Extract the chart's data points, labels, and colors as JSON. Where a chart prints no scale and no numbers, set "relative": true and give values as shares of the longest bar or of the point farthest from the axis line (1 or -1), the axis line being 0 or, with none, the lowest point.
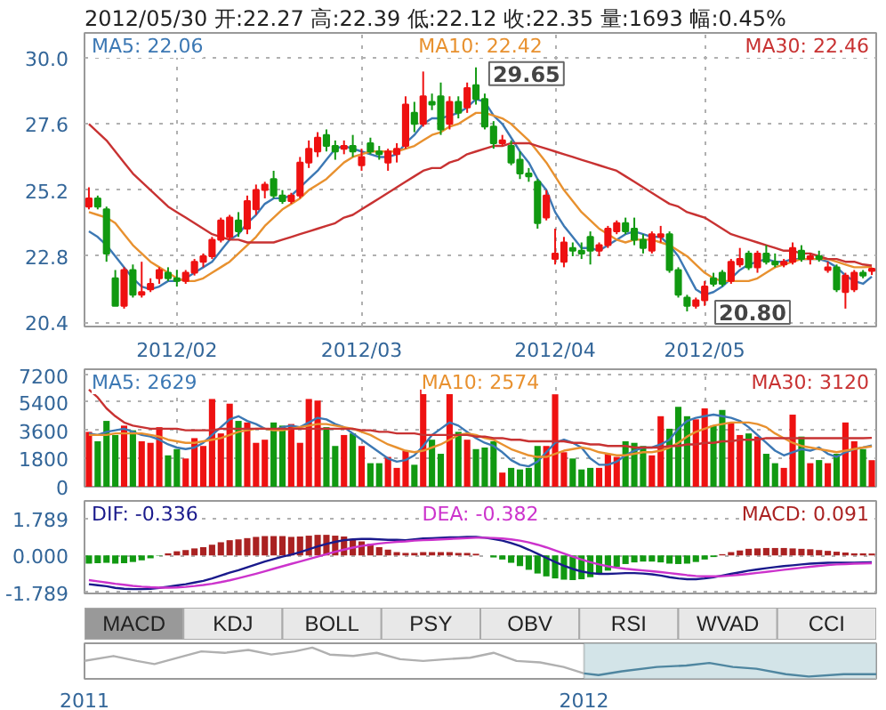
{
  "chart_data": [
    {
      "type": "candlestick",
      "title": "2012/05/30 开:22.27 高:22.39 低:22.12 收:22.35 量:1693 幅:0.45%",
      "categories": [
        null,
        null,
        null,
        null,
        null,
        null,
        null,
        null,
        null,
        null,
        "2012/02",
        null,
        null,
        null,
        null,
        null,
        null,
        null,
        null,
        null,
        null,
        null,
        null,
        null,
        null,
        null,
        null,
        null,
        null,
        null,
        null,
        "2012/03",
        null,
        null,
        null,
        null,
        null,
        null,
        null,
        null,
        null,
        null,
        null,
        null,
        null,
        null,
        null,
        null,
        null,
        null,
        null,
        null,
        null,
        "2012/04",
        null,
        null,
        null,
        null,
        null,
        null,
        null,
        null,
        null,
        null,
        null,
        null,
        null,
        null,
        null,
        null,
        "2012/05",
        null,
        null,
        null,
        null,
        null,
        null,
        null,
        null,
        null,
        null,
        null,
        null,
        null,
        null,
        null,
        null,
        null,
        null,
        null
      ],
      "ylim": [
        20.25,
        30.9
      ],
      "yticks": [
        20.4,
        22.8,
        25.2,
        27.6,
        {
          "value": 30,
          "label": "30.0"
        }
      ],
      "grid": true,
      "legend": "top",
      "colors": [
        "#ee1111",
        "#119911",
        "#119911",
        "#119911",
        "#ee1111",
        "#119911",
        "#ee1111",
        "#ee1111",
        "#ee1111",
        "#119911",
        "#119911",
        "#ee1111",
        "#ee1111",
        "#ee1111",
        "#ee1111",
        "#ee1111",
        "#ee1111",
        "#119911",
        "#ee1111",
        "#ee1111",
        "#ee1111",
        "#119911",
        "#119911",
        "#ee1111",
        "#ee1111",
        "#ee1111",
        "#ee1111",
        "#119911",
        "#119911",
        "#ee1111",
        "#119911",
        "#ee1111",
        "#119911",
        "#119911",
        "#ee1111",
        "#ee1111",
        "#ee1111",
        "#119911",
        "#ee1111",
        "#119911",
        "#119911",
        "#ee1111",
        "#119911",
        "#ee1111",
        "#119911",
        "#119911",
        "#119911",
        "#ee1111",
        "#119911",
        "#119911",
        "#119911",
        "#119911",
        "#ee1111",
        "#ee1111",
        "#ee1111",
        "#119911",
        "#119911",
        "#119911",
        "#ee1111",
        "#ee1111",
        "#ee1111",
        "#119911",
        "#119911",
        "#119911",
        "#ee1111",
        "#ee1111",
        "#119911",
        "#119911",
        "#119911",
        "#ee1111",
        "#ee1111",
        "#119911",
        "#119911",
        "#ee1111",
        "#ee1111",
        "#119911",
        "#ee1111",
        "#119911",
        "#119911",
        "#ee1111",
        "#ee1111",
        "#119911",
        "#ee1111",
        "#119911",
        "#ee1111",
        "#119911",
        "#ee1111",
        "#ee1111",
        "#119911",
        "#ee1111"
      ],
      "ohlc": [
        [
          24.6,
          25.3,
          24.5,
          24.9
        ],
        [
          24.9,
          25.0,
          24.5,
          24.6
        ],
        [
          24.5,
          24.6,
          22.6,
          22.9
        ],
        [
          22.0,
          22.3,
          21.0,
          21.0
        ],
        [
          21.0,
          22.4,
          20.9,
          22.3
        ],
        [
          22.3,
          22.5,
          21.3,
          21.4
        ],
        [
          21.4,
          22.6,
          21.3,
          21.5
        ],
        [
          21.6,
          22.0,
          21.5,
          21.8
        ],
        [
          22.0,
          22.4,
          21.8,
          22.3
        ],
        [
          22.2,
          22.4,
          21.9,
          22.0
        ],
        [
          22.0,
          22.3,
          21.7,
          21.9
        ],
        [
          21.9,
          22.3,
          21.8,
          22.2
        ],
        [
          22.2,
          22.7,
          22.1,
          22.6
        ],
        [
          22.6,
          22.9,
          22.4,
          22.8
        ],
        [
          22.8,
          23.5,
          22.7,
          23.4
        ],
        [
          23.4,
          24.2,
          23.3,
          24.1
        ],
        [
          23.5,
          24.3,
          23.4,
          24.2
        ],
        [
          24.1,
          24.4,
          23.5,
          23.7
        ],
        [
          23.8,
          25.0,
          23.6,
          24.8
        ],
        [
          24.5,
          25.4,
          24.3,
          25.2
        ],
        [
          25.2,
          25.5,
          24.9,
          25.4
        ],
        [
          25.6,
          25.9,
          24.9,
          25.0
        ],
        [
          25.0,
          25.2,
          24.7,
          24.8
        ],
        [
          24.8,
          25.1,
          24.7,
          25.0
        ],
        [
          25.0,
          26.4,
          24.9,
          26.2
        ],
        [
          26.2,
          27.0,
          26.0,
          26.7
        ],
        [
          26.6,
          27.3,
          26.4,
          27.1
        ],
        [
          27.2,
          27.4,
          26.6,
          26.8
        ],
        [
          26.8,
          27.0,
          26.3,
          26.6
        ],
        [
          26.7,
          27.0,
          26.5,
          26.8
        ],
        [
          26.8,
          27.2,
          26.4,
          26.6
        ],
        [
          26.1,
          26.7,
          25.9,
          26.4
        ],
        [
          26.9,
          27.1,
          26.5,
          26.6
        ],
        [
          26.6,
          26.8,
          26.3,
          26.5
        ],
        [
          26.2,
          26.7,
          25.9,
          26.6
        ],
        [
          26.5,
          26.9,
          26.2,
          26.7
        ],
        [
          26.8,
          28.6,
          26.7,
          28.3
        ],
        [
          28.0,
          28.4,
          27.3,
          27.6
        ],
        [
          27.6,
          29.5,
          27.5,
          28.6
        ],
        [
          28.4,
          28.7,
          28.1,
          28.3
        ],
        [
          28.6,
          29.1,
          27.2,
          27.4
        ],
        [
          27.6,
          28.6,
          27.4,
          28.4
        ],
        [
          28.4,
          28.6,
          27.8,
          28.0
        ],
        [
          28.2,
          29.1,
          28.0,
          28.9
        ],
        [
          29.0,
          29.65,
          28.3,
          28.5
        ],
        [
          28.5,
          28.7,
          27.4,
          27.5
        ],
        [
          27.5,
          27.7,
          26.7,
          26.9
        ],
        [
          26.9,
          27.2,
          26.8,
          27.0
        ],
        [
          26.8,
          27.0,
          26.1,
          26.2
        ],
        [
          26.3,
          26.6,
          25.6,
          25.8
        ],
        [
          25.8,
          26.0,
          25.5,
          25.7
        ],
        [
          25.5,
          25.6,
          23.8,
          24.0
        ],
        [
          24.2,
          25.2,
          24.1,
          25.0
        ],
        [
          22.7,
          23.8,
          22.5,
          22.9
        ],
        [
          22.6,
          23.5,
          22.4,
          23.3
        ],
        [
          23.1,
          23.3,
          22.8,
          23.0
        ],
        [
          23.0,
          23.3,
          22.7,
          22.9
        ],
        [
          23.5,
          23.7,
          22.5,
          23.0
        ],
        [
          23.0,
          23.3,
          22.8,
          23.2
        ],
        [
          23.2,
          23.9,
          23.1,
          23.8
        ],
        [
          23.7,
          24.1,
          23.6,
          24.0
        ],
        [
          24.0,
          24.2,
          23.6,
          23.7
        ],
        [
          23.8,
          24.2,
          23.2,
          23.4
        ],
        [
          23.4,
          23.6,
          22.9,
          23.1
        ],
        [
          23.0,
          23.7,
          22.9,
          23.6
        ],
        [
          23.5,
          23.9,
          23.3,
          23.6
        ],
        [
          23.6,
          23.7,
          22.2,
          22.3
        ],
        [
          22.3,
          22.4,
          21.3,
          21.4
        ],
        [
          21.3,
          21.4,
          20.8,
          21.0
        ],
        [
          21.0,
          21.3,
          20.9,
          21.2
        ],
        [
          21.2,
          21.9,
          21.0,
          21.7
        ],
        [
          22.0,
          22.2,
          21.7,
          21.8
        ],
        [
          22.2,
          22.3,
          21.7,
          21.8
        ],
        [
          21.9,
          22.7,
          21.8,
          22.6
        ],
        [
          22.5,
          23.1,
          22.4,
          22.7
        ],
        [
          22.9,
          23.0,
          22.3,
          22.4
        ],
        [
          22.4,
          23.0,
          22.2,
          22.9
        ],
        [
          22.9,
          23.2,
          22.5,
          22.6
        ],
        [
          22.6,
          22.9,
          22.4,
          22.5
        ],
        [
          22.5,
          22.7,
          22.4,
          22.6
        ],
        [
          22.6,
          23.3,
          22.5,
          23.1
        ],
        [
          23.0,
          23.2,
          22.6,
          22.7
        ],
        [
          22.7,
          22.9,
          22.5,
          22.8
        ],
        [
          22.8,
          23.0,
          22.6,
          22.7
        ],
        [
          22.3,
          22.6,
          22.2,
          22.4
        ],
        [
          22.4,
          22.5,
          21.5,
          21.6
        ],
        [
          21.5,
          22.2,
          20.9,
          22.1
        ],
        [
          21.6,
          22.3,
          21.5,
          22.2
        ],
        [
          22.2,
          22.3,
          22.0,
          22.1
        ],
        [
          22.27,
          22.39,
          22.12,
          22.35
        ]
      ],
      "series": [
        {
          "type": "line",
          "name": "MA5: 22.06",
          "color": "#3c78b4",
          "values": [
            23.7,
            23.5,
            23.2,
            22.8,
            22.4,
            22.0,
            21.7,
            21.6,
            21.7,
            21.9,
            21.9,
            22.0,
            22.2,
            22.4,
            22.6,
            23.0,
            23.4,
            23.6,
            24.0,
            24.3,
            24.7,
            24.9,
            24.9,
            25.0,
            25.3,
            25.6,
            25.9,
            26.3,
            26.7,
            26.8,
            26.7,
            26.6,
            26.5,
            26.4,
            26.4,
            26.5,
            26.9,
            27.2,
            27.6,
            27.8,
            27.8,
            27.9,
            28.0,
            28.2,
            28.5,
            28.4,
            27.9,
            27.6,
            27.1,
            26.6,
            26.2,
            25.6,
            25.2,
            24.4,
            23.9,
            23.5,
            23.1,
            23.1,
            23.0,
            23.2,
            23.4,
            23.6,
            23.7,
            23.6,
            23.5,
            23.5,
            23.2,
            22.8,
            22.2,
            21.6,
            21.4,
            21.5,
            21.7,
            22.0,
            22.3,
            22.5,
            22.6,
            22.7,
            22.6,
            22.6,
            22.7,
            22.7,
            22.7,
            22.7,
            22.6,
            22.4,
            22.1,
            21.9,
            21.8,
            22.06
          ]
        },
        {
          "type": "line",
          "name": "MA10: 22.42",
          "color": "#e8912f",
          "values": [
            24.4,
            24.3,
            24.2,
            24.0,
            23.6,
            23.2,
            22.9,
            22.6,
            22.4,
            22.2,
            22.0,
            21.9,
            21.9,
            22.0,
            22.2,
            22.4,
            22.6,
            22.9,
            23.2,
            23.5,
            23.9,
            24.2,
            24.5,
            24.7,
            24.9,
            25.2,
            25.4,
            25.6,
            25.9,
            26.2,
            26.4,
            26.5,
            26.6,
            26.6,
            26.6,
            26.6,
            26.7,
            26.8,
            27.0,
            27.2,
            27.3,
            27.5,
            27.6,
            27.8,
            28.0,
            28.0,
            27.9,
            27.8,
            27.6,
            27.3,
            27.0,
            26.6,
            26.2,
            25.7,
            25.2,
            24.8,
            24.4,
            24.1,
            23.8,
            23.6,
            23.4,
            23.3,
            23.4,
            23.4,
            23.4,
            23.3,
            23.2,
            23.0,
            22.8,
            22.5,
            22.2,
            22.0,
            21.9,
            21.9,
            21.9,
            21.9,
            22.0,
            22.2,
            22.4,
            22.5,
            22.6,
            22.7,
            22.7,
            22.7,
            22.7,
            22.6,
            22.5,
            22.4,
            22.4,
            22.42
          ]
        },
        {
          "type": "line",
          "name": "MA30: 22.46",
          "color": "#c83232",
          "values": [
            27.6,
            27.3,
            27.0,
            26.6,
            26.2,
            25.8,
            25.5,
            25.2,
            24.9,
            24.6,
            24.4,
            24.2,
            24.0,
            23.8,
            23.6,
            23.5,
            23.4,
            23.4,
            23.3,
            23.3,
            23.3,
            23.3,
            23.4,
            23.5,
            23.6,
            23.7,
            23.8,
            23.9,
            24.0,
            24.2,
            24.3,
            24.5,
            24.7,
            24.9,
            25.1,
            25.3,
            25.5,
            25.7,
            25.9,
            26.0,
            26.0,
            26.2,
            26.3,
            26.5,
            26.6,
            26.7,
            26.8,
            26.8,
            26.9,
            26.9,
            26.9,
            26.8,
            26.7,
            26.6,
            26.5,
            26.4,
            26.3,
            26.2,
            26.1,
            26.0,
            25.9,
            25.7,
            25.5,
            25.3,
            25.1,
            24.9,
            24.7,
            24.6,
            24.4,
            24.3,
            24.2,
            24.0,
            23.8,
            23.6,
            23.5,
            23.4,
            23.3,
            23.2,
            23.1,
            23.0,
            23.0,
            22.9,
            22.9,
            22.8,
            22.7,
            22.7,
            22.6,
            22.6,
            22.5,
            22.46
          ]
        }
      ],
      "annotations": [
        "29.65",
        "20.80"
      ]
    },
    {
      "type": "bar",
      "tick_labels": "y",
      "categories": [
        null,
        null,
        null,
        null,
        null,
        null,
        null,
        null,
        null,
        null,
        "2012/02",
        null,
        null,
        null,
        null,
        null,
        null,
        null,
        null,
        null,
        null,
        null,
        null,
        null,
        null,
        null,
        null,
        null,
        null,
        null,
        null,
        "2012/03",
        null,
        null,
        null,
        null,
        null,
        null,
        null,
        null,
        null,
        null,
        null,
        null,
        null,
        null,
        null,
        null,
        null,
        null,
        null,
        null,
        null,
        "2012/04",
        null,
        null,
        null,
        null,
        null,
        null,
        null,
        null,
        null,
        null,
        null,
        null,
        null,
        null,
        null,
        null,
        "2012/05",
        null,
        null,
        null,
        null,
        null,
        null,
        null,
        null,
        null,
        null,
        null,
        null,
        null,
        null,
        null,
        null,
        null,
        null,
        null
      ],
      "ylim": [
        0,
        7500
      ],
      "yticks": [
        0,
        1800,
        3600,
        5400,
        7200
      ],
      "grid": true,
      "legend": "top",
      "series": [
        {
          "values": [
            3500,
            2900,
            4200,
            3300,
            3900,
            3600,
            2900,
            2800,
            3800,
            2000,
            2400,
            1800,
            3100,
            2600,
            5600,
            3400,
            5300,
            4200,
            4100,
            2800,
            3000,
            4100,
            3900,
            4000,
            2800,
            5600,
            5500,
            3800,
            2600,
            3300,
            3400,
            2600,
            1500,
            1500,
            1900,
            1200,
            2300,
            1400,
            6200,
            3000,
            2100,
            6000,
            3500,
            3000,
            2400,
            2500,
            2900,
            900,
            1200,
            1100,
            1200,
            2600,
            2600,
            5900,
            2200,
            1800,
            1100,
            1200,
            1200,
            2100,
            1900,
            2900,
            2800,
            2600,
            2000,
            4500,
            3700,
            5100,
            4500,
            4300,
            5000,
            3900,
            4900,
            4100,
            3300,
            3400,
            3200,
            2100,
            1500,
            1200,
            4600,
            3200,
            1500,
            1700,
            1500,
            2100,
            4100,
            2900,
            2400,
            1693
          ],
          "colors": [
            "#ee1111",
            "#119911",
            "#119911",
            "#119911",
            "#ee1111",
            "#119911",
            "#ee1111",
            "#ee1111",
            "#ee1111",
            "#119911",
            "#119911",
            "#ee1111",
            "#ee1111",
            "#ee1111",
            "#ee1111",
            "#ee1111",
            "#ee1111",
            "#119911",
            "#ee1111",
            "#ee1111",
            "#ee1111",
            "#119911",
            "#119911",
            "#ee1111",
            "#ee1111",
            "#ee1111",
            "#ee1111",
            "#119911",
            "#119911",
            "#ee1111",
            "#119911",
            "#ee1111",
            "#119911",
            "#119911",
            "#ee1111",
            "#ee1111",
            "#ee1111",
            "#119911",
            "#ee1111",
            "#119911",
            "#119911",
            "#ee1111",
            "#119911",
            "#ee1111",
            "#119911",
            "#119911",
            "#119911",
            "#ee1111",
            "#119911",
            "#119911",
            "#119911",
            "#119911",
            "#ee1111",
            "#ee1111",
            "#ee1111",
            "#119911",
            "#119911",
            "#119911",
            "#ee1111",
            "#ee1111",
            "#ee1111",
            "#119911",
            "#119911",
            "#119911",
            "#ee1111",
            "#ee1111",
            "#119911",
            "#119911",
            "#119911",
            "#ee1111",
            "#ee1111",
            "#119911",
            "#119911",
            "#ee1111",
            "#ee1111",
            "#119911",
            "#ee1111",
            "#119911",
            "#119911",
            "#ee1111",
            "#ee1111",
            "#119911",
            "#ee1111",
            "#119911",
            "#ee1111",
            "#119911",
            "#ee1111",
            "#ee1111",
            "#119911",
            "#ee1111"
          ]
        },
        {
          "type": "line",
          "name": "MA5: 2629",
          "color": "#3c78b4",
          "values": [
            3400,
            3300,
            3500,
            3600,
            3700,
            3500,
            3300,
            3200,
            3000,
            2700,
            2500,
            2400,
            2500,
            2800,
            3300,
            3800,
            4300,
            4500,
            4200,
            4000,
            3700,
            3600,
            3800,
            3900,
            3800,
            4100,
            4400,
            4300,
            4000,
            3800,
            3400,
            3000,
            2600,
            2200,
            1800,
            1600,
            1700,
            2000,
            2600,
            3300,
            3700,
            4100,
            3900,
            3500,
            3100,
            2800,
            2600,
            2200,
            1700,
            1400,
            1300,
            1600,
            2200,
            2800,
            3000,
            2800,
            2500,
            1800,
            1400,
            1400,
            1600,
            2000,
            2300,
            2500,
            2500,
            2700,
            3000,
            3700,
            4200,
            4400,
            4500,
            4600,
            4500,
            4400,
            4200,
            3800,
            3300,
            2800,
            2300,
            2000,
            2200,
            2400,
            2300,
            2500,
            2100,
            1900,
            2200,
            2400,
            2500,
            2629
          ]
        },
        {
          "type": "line",
          "name": "MA10: 2574",
          "color": "#e8912f",
          "values": [
            3300,
            3300,
            3300,
            3400,
            3400,
            3400,
            3400,
            3300,
            3200,
            3000,
            2900,
            2800,
            2800,
            2900,
            3000,
            3100,
            3300,
            3500,
            3600,
            3700,
            3700,
            3600,
            3600,
            3700,
            3800,
            3900,
            4000,
            4000,
            3900,
            3800,
            3700,
            3500,
            3300,
            3000,
            2700,
            2500,
            2300,
            2200,
            2300,
            2500,
            2700,
            3000,
            3300,
            3400,
            3300,
            3100,
            3000,
            2700,
            2400,
            2200,
            2000,
            1900,
            1900,
            2100,
            2300,
            2400,
            2500,
            2400,
            2200,
            2100,
            2000,
            2000,
            2100,
            2200,
            2200,
            2300,
            2500,
            2800,
            3200,
            3500,
            3700,
            3900,
            4000,
            4100,
            4100,
            4100,
            4000,
            3800,
            3400,
            3100,
            2800,
            2600,
            2500,
            2400,
            2300,
            2200,
            2300,
            2400,
            2500,
            2574
          ]
        },
        {
          "type": "line",
          "name": "MA30: 3120",
          "color": "#c83232",
          "values": [
            6200,
            5700,
            5000,
            4500,
            4100,
            3900,
            3800,
            3700,
            3700,
            3700,
            3700,
            3600,
            3600,
            3600,
            3600,
            3700,
            3700,
            3700,
            3700,
            3700,
            3700,
            3700,
            3700,
            3700,
            3700,
            3700,
            3700,
            3700,
            3700,
            3700,
            3700,
            3600,
            3600,
            3500,
            3500,
            3400,
            3400,
            3400,
            3300,
            3300,
            3300,
            3300,
            3300,
            3300,
            3200,
            3200,
            3100,
            3100,
            3000,
            3000,
            2900,
            2900,
            2900,
            2900,
            2900,
            2800,
            2800,
            2700,
            2700,
            2600,
            2600,
            2600,
            2500,
            2500,
            2500,
            2500,
            2600,
            2600,
            2700,
            2700,
            2800,
            2800,
            2900,
            2900,
            3000,
            3000,
            3000,
            3100,
            3100,
            3100,
            3100,
            3100,
            3100,
            3100,
            3100,
            3100,
            3100,
            3100,
            3100,
            3120
          ]
        }
      ]
    },
    {
      "type": "bar",
      "tick_labels": "y",
      "categories": [
        null,
        null,
        null,
        null,
        null,
        null,
        null,
        null,
        null,
        null,
        "2012/02",
        null,
        null,
        null,
        null,
        null,
        null,
        null,
        null,
        null,
        null,
        null,
        null,
        null,
        null,
        null,
        null,
        null,
        null,
        null,
        null,
        "2012/03",
        null,
        null,
        null,
        null,
        null,
        null,
        null,
        null,
        null,
        null,
        null,
        null,
        null,
        null,
        null,
        null,
        null,
        null,
        null,
        null,
        null,
        "2012/04",
        null,
        null,
        null,
        null,
        null,
        null,
        null,
        null,
        null,
        null,
        null,
        null,
        null,
        null,
        null,
        null,
        "2012/05",
        null,
        null,
        null,
        null,
        null,
        null,
        null,
        null,
        null,
        null,
        null,
        null,
        null,
        null,
        null,
        null,
        null,
        null,
        null
      ],
      "ylim": [
        -1.85,
        2.65
      ],
      "yticks": [
        -1.789,
        {
          "value": 0,
          "label": "0.000"
        },
        1.789
      ],
      "grid": "y",
      "legend": "top",
      "annotations": [
        "MACD",
        "KDJ",
        "BOLL",
        "PSY",
        "OBV",
        "RSI",
        "WVAD",
        "CCI"
      ],
      "series": [
        {
          "type": "line",
          "name": "DIF: -0.336",
          "color": "#1a1a8c",
          "values": [
            -1.4,
            -1.45,
            -1.5,
            -1.58,
            -1.62,
            -1.64,
            -1.64,
            -1.62,
            -1.58,
            -1.52,
            -1.46,
            -1.4,
            -1.32,
            -1.24,
            -1.12,
            -0.98,
            -0.84,
            -0.72,
            -0.58,
            -0.44,
            -0.3,
            -0.18,
            -0.06,
            0.04,
            0.16,
            0.3,
            0.44,
            0.56,
            0.66,
            0.74,
            0.78,
            0.8,
            0.8,
            0.78,
            0.76,
            0.76,
            0.74,
            0.78,
            0.82,
            0.84,
            0.86,
            0.88,
            0.88,
            0.9,
            0.9,
            0.86,
            0.8,
            0.72,
            0.6,
            0.46,
            0.28,
            0.08,
            -0.12,
            -0.32,
            -0.5,
            -0.66,
            -0.78,
            -0.86,
            -0.9,
            -0.9,
            -0.88,
            -0.86,
            -0.86,
            -0.88,
            -0.92,
            -0.98,
            -1.06,
            -1.12,
            -1.16,
            -1.16,
            -1.12,
            -1.06,
            -0.98,
            -0.9,
            -0.82,
            -0.74,
            -0.68,
            -0.62,
            -0.57,
            -0.52,
            -0.48,
            -0.44,
            -0.4,
            -0.38,
            -0.36,
            -0.35,
            -0.35,
            -0.35,
            -0.34,
            -0.336
          ]
        },
        {
          "type": "line",
          "name": "DEA: -0.382",
          "color": "#cc33cc",
          "values": [
            -1.2,
            -1.26,
            -1.32,
            -1.38,
            -1.43,
            -1.48,
            -1.52,
            -1.55,
            -1.57,
            -1.57,
            -1.56,
            -1.53,
            -1.49,
            -1.44,
            -1.38,
            -1.3,
            -1.21,
            -1.11,
            -1.0,
            -0.89,
            -0.77,
            -0.65,
            -0.53,
            -0.41,
            -0.3,
            -0.18,
            -0.06,
            0.06,
            0.18,
            0.28,
            0.38,
            0.46,
            0.52,
            0.58,
            0.62,
            0.66,
            0.68,
            0.72,
            0.74,
            0.76,
            0.78,
            0.8,
            0.82,
            0.84,
            0.86,
            0.86,
            0.85,
            0.82,
            0.78,
            0.72,
            0.63,
            0.52,
            0.39,
            0.24,
            0.09,
            -0.06,
            -0.2,
            -0.33,
            -0.44,
            -0.53,
            -0.6,
            -0.65,
            -0.69,
            -0.73,
            -0.77,
            -0.81,
            -0.86,
            -0.91,
            -0.96,
            -1.0,
            -1.02,
            -1.02,
            -1.01,
            -0.98,
            -0.94,
            -0.9,
            -0.85,
            -0.8,
            -0.75,
            -0.7,
            -0.65,
            -0.6,
            -0.55,
            -0.51,
            -0.47,
            -0.44,
            -0.42,
            -0.4,
            -0.39,
            -0.382
          ]
        },
        {
          "name": "MACD: 0.091",
          "color": "#aa2222",
          "colors": [
            "#119911",
            "#119911",
            "#119911",
            "#119911",
            "#119911",
            "#119911",
            "#119911",
            "#119911",
            "#119911",
            "#aa2222",
            "#aa2222",
            "#aa2222",
            "#aa2222",
            "#aa2222",
            "#aa2222",
            "#aa2222",
            "#aa2222",
            "#aa2222",
            "#aa2222",
            "#aa2222",
            "#aa2222",
            "#aa2222",
            "#aa2222",
            "#aa2222",
            "#aa2222",
            "#aa2222",
            "#aa2222",
            "#aa2222",
            "#aa2222",
            "#aa2222",
            "#aa2222",
            "#aa2222",
            "#aa2222",
            "#aa2222",
            "#aa2222",
            "#aa2222",
            "#aa2222",
            "#aa2222",
            "#aa2222",
            "#aa2222",
            "#aa2222",
            "#aa2222",
            "#aa2222",
            "#aa2222",
            "#aa2222",
            "#aa2222",
            "#119911",
            "#119911",
            "#119911",
            "#119911",
            "#119911",
            "#119911",
            "#119911",
            "#119911",
            "#119911",
            "#119911",
            "#119911",
            "#119911",
            "#119911",
            "#119911",
            "#119911",
            "#119911",
            "#119911",
            "#119911",
            "#119911",
            "#119911",
            "#119911",
            "#119911",
            "#119911",
            "#119911",
            "#119911",
            "#119911",
            "#aa2222",
            "#aa2222",
            "#aa2222",
            "#aa2222",
            "#aa2222",
            "#aa2222",
            "#aa2222",
            "#aa2222",
            "#aa2222",
            "#aa2222",
            "#aa2222",
            "#aa2222",
            "#aa2222",
            "#aa2222",
            "#aa2222",
            "#aa2222",
            "#aa2222",
            "#aa2222"
          ],
          "values": [
            -0.4,
            -0.38,
            -0.36,
            -0.4,
            -0.38,
            -0.32,
            -0.24,
            -0.14,
            -0.02,
            0.1,
            0.2,
            0.26,
            0.34,
            0.4,
            0.52,
            0.64,
            0.74,
            0.78,
            0.84,
            0.9,
            0.94,
            0.94,
            0.94,
            0.9,
            0.92,
            0.96,
            1.0,
            1.0,
            0.96,
            0.92,
            0.8,
            0.68,
            0.56,
            0.4,
            0.28,
            0.16,
            0.12,
            0.12,
            0.16,
            0.16,
            0.16,
            0.16,
            0.12,
            0.12,
            0.08,
            0.0,
            -0.1,
            -0.2,
            -0.36,
            -0.52,
            -0.7,
            -0.88,
            -1.02,
            -1.12,
            -1.18,
            -1.2,
            -1.16,
            -1.06,
            -0.92,
            -0.74,
            -0.56,
            -0.42,
            -0.34,
            -0.3,
            -0.3,
            -0.34,
            -0.4,
            -0.42,
            -0.4,
            -0.32,
            -0.2,
            -0.08,
            0.06,
            0.16,
            0.24,
            0.32,
            0.34,
            0.36,
            0.36,
            0.36,
            0.34,
            0.32,
            0.3,
            0.26,
            0.22,
            0.18,
            0.14,
            0.1,
            0.1,
            0.091
          ]
        }
      ]
    },
    {
      "type": "line",
      "relative": true,
      "xlim": [
        2011,
        2012.585
      ],
      "xticks": [
        2011,
        2012
      ],
      "tick_labels": "x",
      "bands": [
        {
          "axis": "x",
          "from": 2012,
          "to": 2012.585,
          "color": "#d3e4e8"
        }
      ],
      "series": [
        {
          "color": "#b0b0b0",
          "x": [
            2011.0,
            2011.058,
            2011.105,
            2011.14,
            2011.199,
            2011.234,
            2011.281,
            2011.328,
            2011.374,
            2011.421,
            2011.456,
            2011.491,
            2011.538,
            2011.585,
            2011.632,
            2011.678,
            2011.725,
            2011.772,
            2011.819,
            2011.865,
            2011.912,
            2011.959,
            2012.0
          ],
          "values": [
            0.54,
            0.71,
            0.54,
            0.43,
            0.71,
            0.87,
            0.82,
            0.92,
            0.76,
            0.87,
            1,
            0.76,
            0.71,
            0.82,
            0.6,
            0.54,
            0.6,
            0.65,
            0.82,
            0.54,
            0.49,
            0.33,
            0.11
          ]
        },
        {
          "color": "#4f86a0",
          "x": [
            2012.0,
            2012.029,
            2012.076,
            2012.146,
            2012.205,
            2012.251,
            2012.298,
            2012.345,
            2012.404,
            2012.45,
            2012.52,
            2012.585
          ],
          "values": [
            0.11,
            0.05,
            0.18,
            0.33,
            0.38,
            0.47,
            0.33,
            0.27,
            0.08,
            0,
            0.08,
            0.08
          ]
        }
      ]
    }
  ]
}
